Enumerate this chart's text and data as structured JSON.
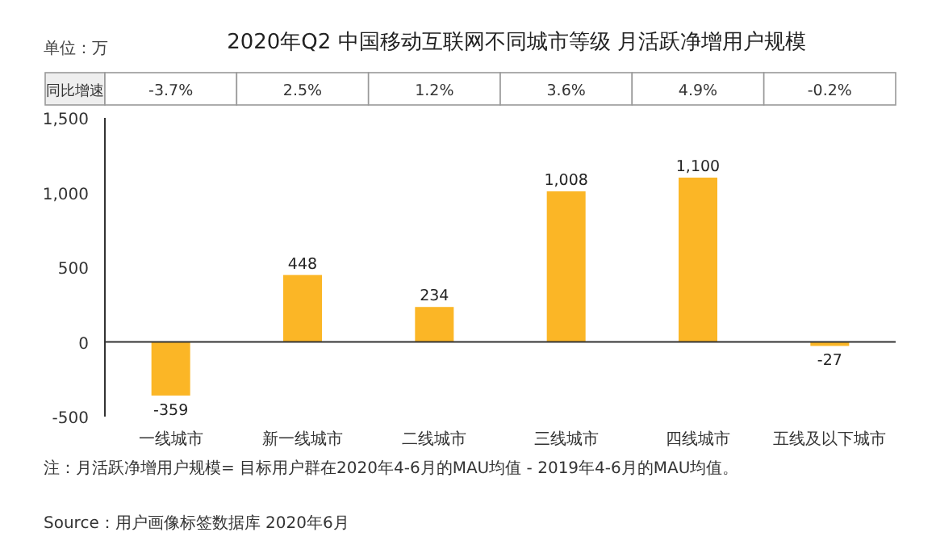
{
  "chart_data": {
    "type": "bar",
    "title": "2020年Q2 中国移动互联网不同城市等级 月活跃净增用户规模",
    "categories": [
      "一线城市",
      "新一线城市",
      "二线城市",
      "三线城市",
      "四线城市",
      "五线及以下城市"
    ],
    "values": [
      -359,
      448,
      234,
      1008,
      1100,
      -27
    ],
    "color": "#fbb626",
    "value_labels": [
      "-359",
      "448",
      "234",
      "1,008",
      "1,100",
      "-27"
    ],
    "ylim": [
      -500,
      1500
    ],
    "yticks": [
      -500,
      0,
      500,
      {
        "value": 1000,
        "label": "1,000"
      },
      {
        "value": 1500,
        "label": "1,500"
      }
    ],
    "annotations": [
      "单位：万",
      "同比增速",
      "-3.7%",
      "2.5%",
      "1.2%",
      "3.6%",
      "4.9%",
      "-0.2%",
      "注：月活跃净增用户规模= 目标用户群在2020年4-6月的MAU均值 - 2019年4-6月的MAU均值。",
      "Source：用户画像标签数据库 2020年6月"
    ]
  }
}
